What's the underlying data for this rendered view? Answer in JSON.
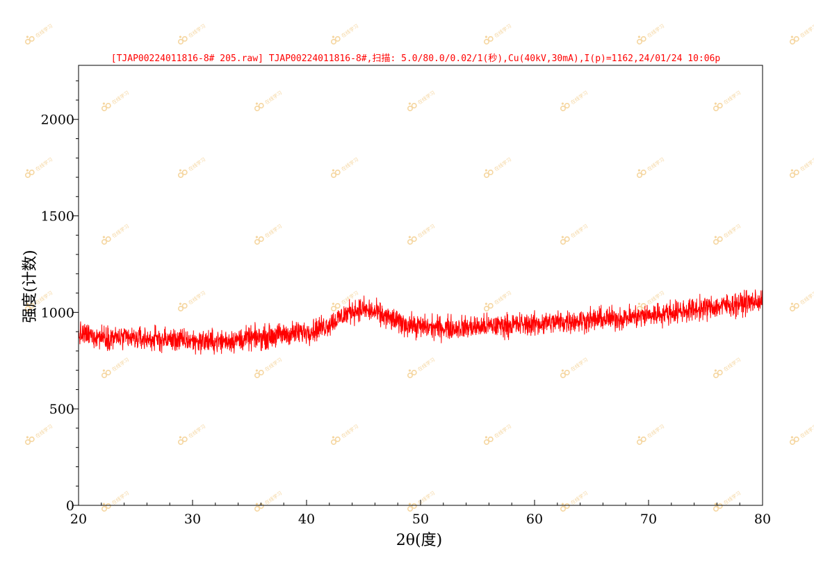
{
  "chart_data": {
    "type": "line",
    "title": "[TJAP00224011816-8# 205.raw] TJAP00224011816-8#,扫描: 5.0/80.0/0.02/1(秒),Cu(40kV,30mA),I(p)=1162,24/01/24 10:06p",
    "xlabel": "2θ(度)",
    "ylabel": "强度(计数)",
    "xlim": [
      20,
      80
    ],
    "ylim": [
      0,
      2280
    ],
    "x_ticks": [
      20,
      30,
      40,
      50,
      60,
      70,
      80
    ],
    "y_ticks": [
      0,
      500,
      1000,
      1500,
      2000
    ],
    "grid": false,
    "legend": "none",
    "series": [
      {
        "step": 0.02,
        "x": [
          20,
          22,
          24,
          26,
          28,
          30,
          32,
          34,
          36,
          38,
          40,
          41,
          42,
          43,
          44,
          45,
          46,
          47,
          48,
          49,
          50,
          52,
          54,
          56,
          58,
          60,
          62,
          64,
          66,
          68,
          70,
          72,
          74,
          76,
          78,
          80
        ],
        "y": [
          885,
          875,
          865,
          862,
          858,
          852,
          848,
          858,
          870,
          885,
          900,
          915,
          940,
          975,
          1010,
          1015,
          1000,
          975,
          950,
          935,
          925,
          920,
          922,
          928,
          935,
          940,
          950,
          958,
          965,
          972,
          985,
          1000,
          1015,
          1030,
          1045,
          1060
        ],
        "noise_amplitude": 42
      }
    ]
  },
  "colors": {
    "trace": "#ff0000",
    "title": "#ff0000",
    "axis": "#000000",
    "watermark": "#f5d6a0",
    "background": "#ffffff"
  },
  "watermark": {
    "icon": "logo-mark-icon",
    "text": "在线学习"
  }
}
